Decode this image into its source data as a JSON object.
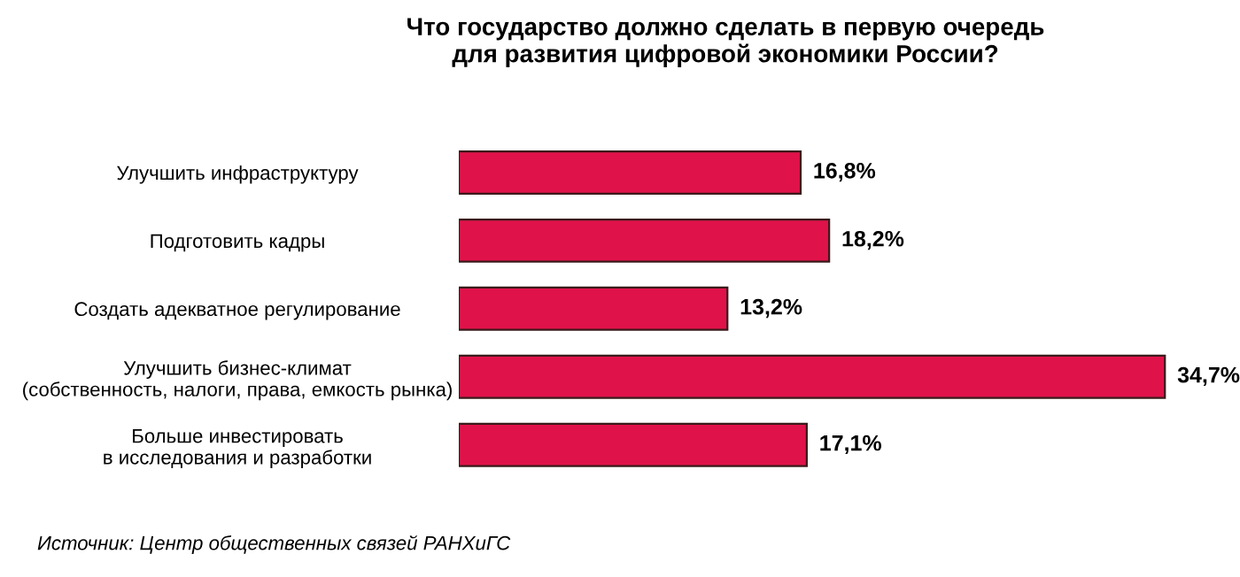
{
  "chart_data": {
    "type": "bar",
    "orientation": "horizontal",
    "title": "Что государство должно сделать в первую очередь\nдля развития цифровой экономики России?",
    "categories": [
      "Улучшить инфраструктуру",
      "Подготовить кадры",
      "Создать адекватное регулирование",
      "Улучшить бизнес-климат\n(собственность, налоги, права, емкость рынка)",
      "Больше инвестировать\nв исследования и разработки"
    ],
    "values": [
      16.8,
      18.2,
      13.2,
      34.7,
      17.1
    ],
    "value_labels": [
      "16,8%",
      "18,2%",
      "13,2%",
      "34,7%",
      "17,1%"
    ],
    "color": "#e0124a",
    "annotations": [
      "Источник: Центр общественных связей РАНХиГС"
    ]
  }
}
